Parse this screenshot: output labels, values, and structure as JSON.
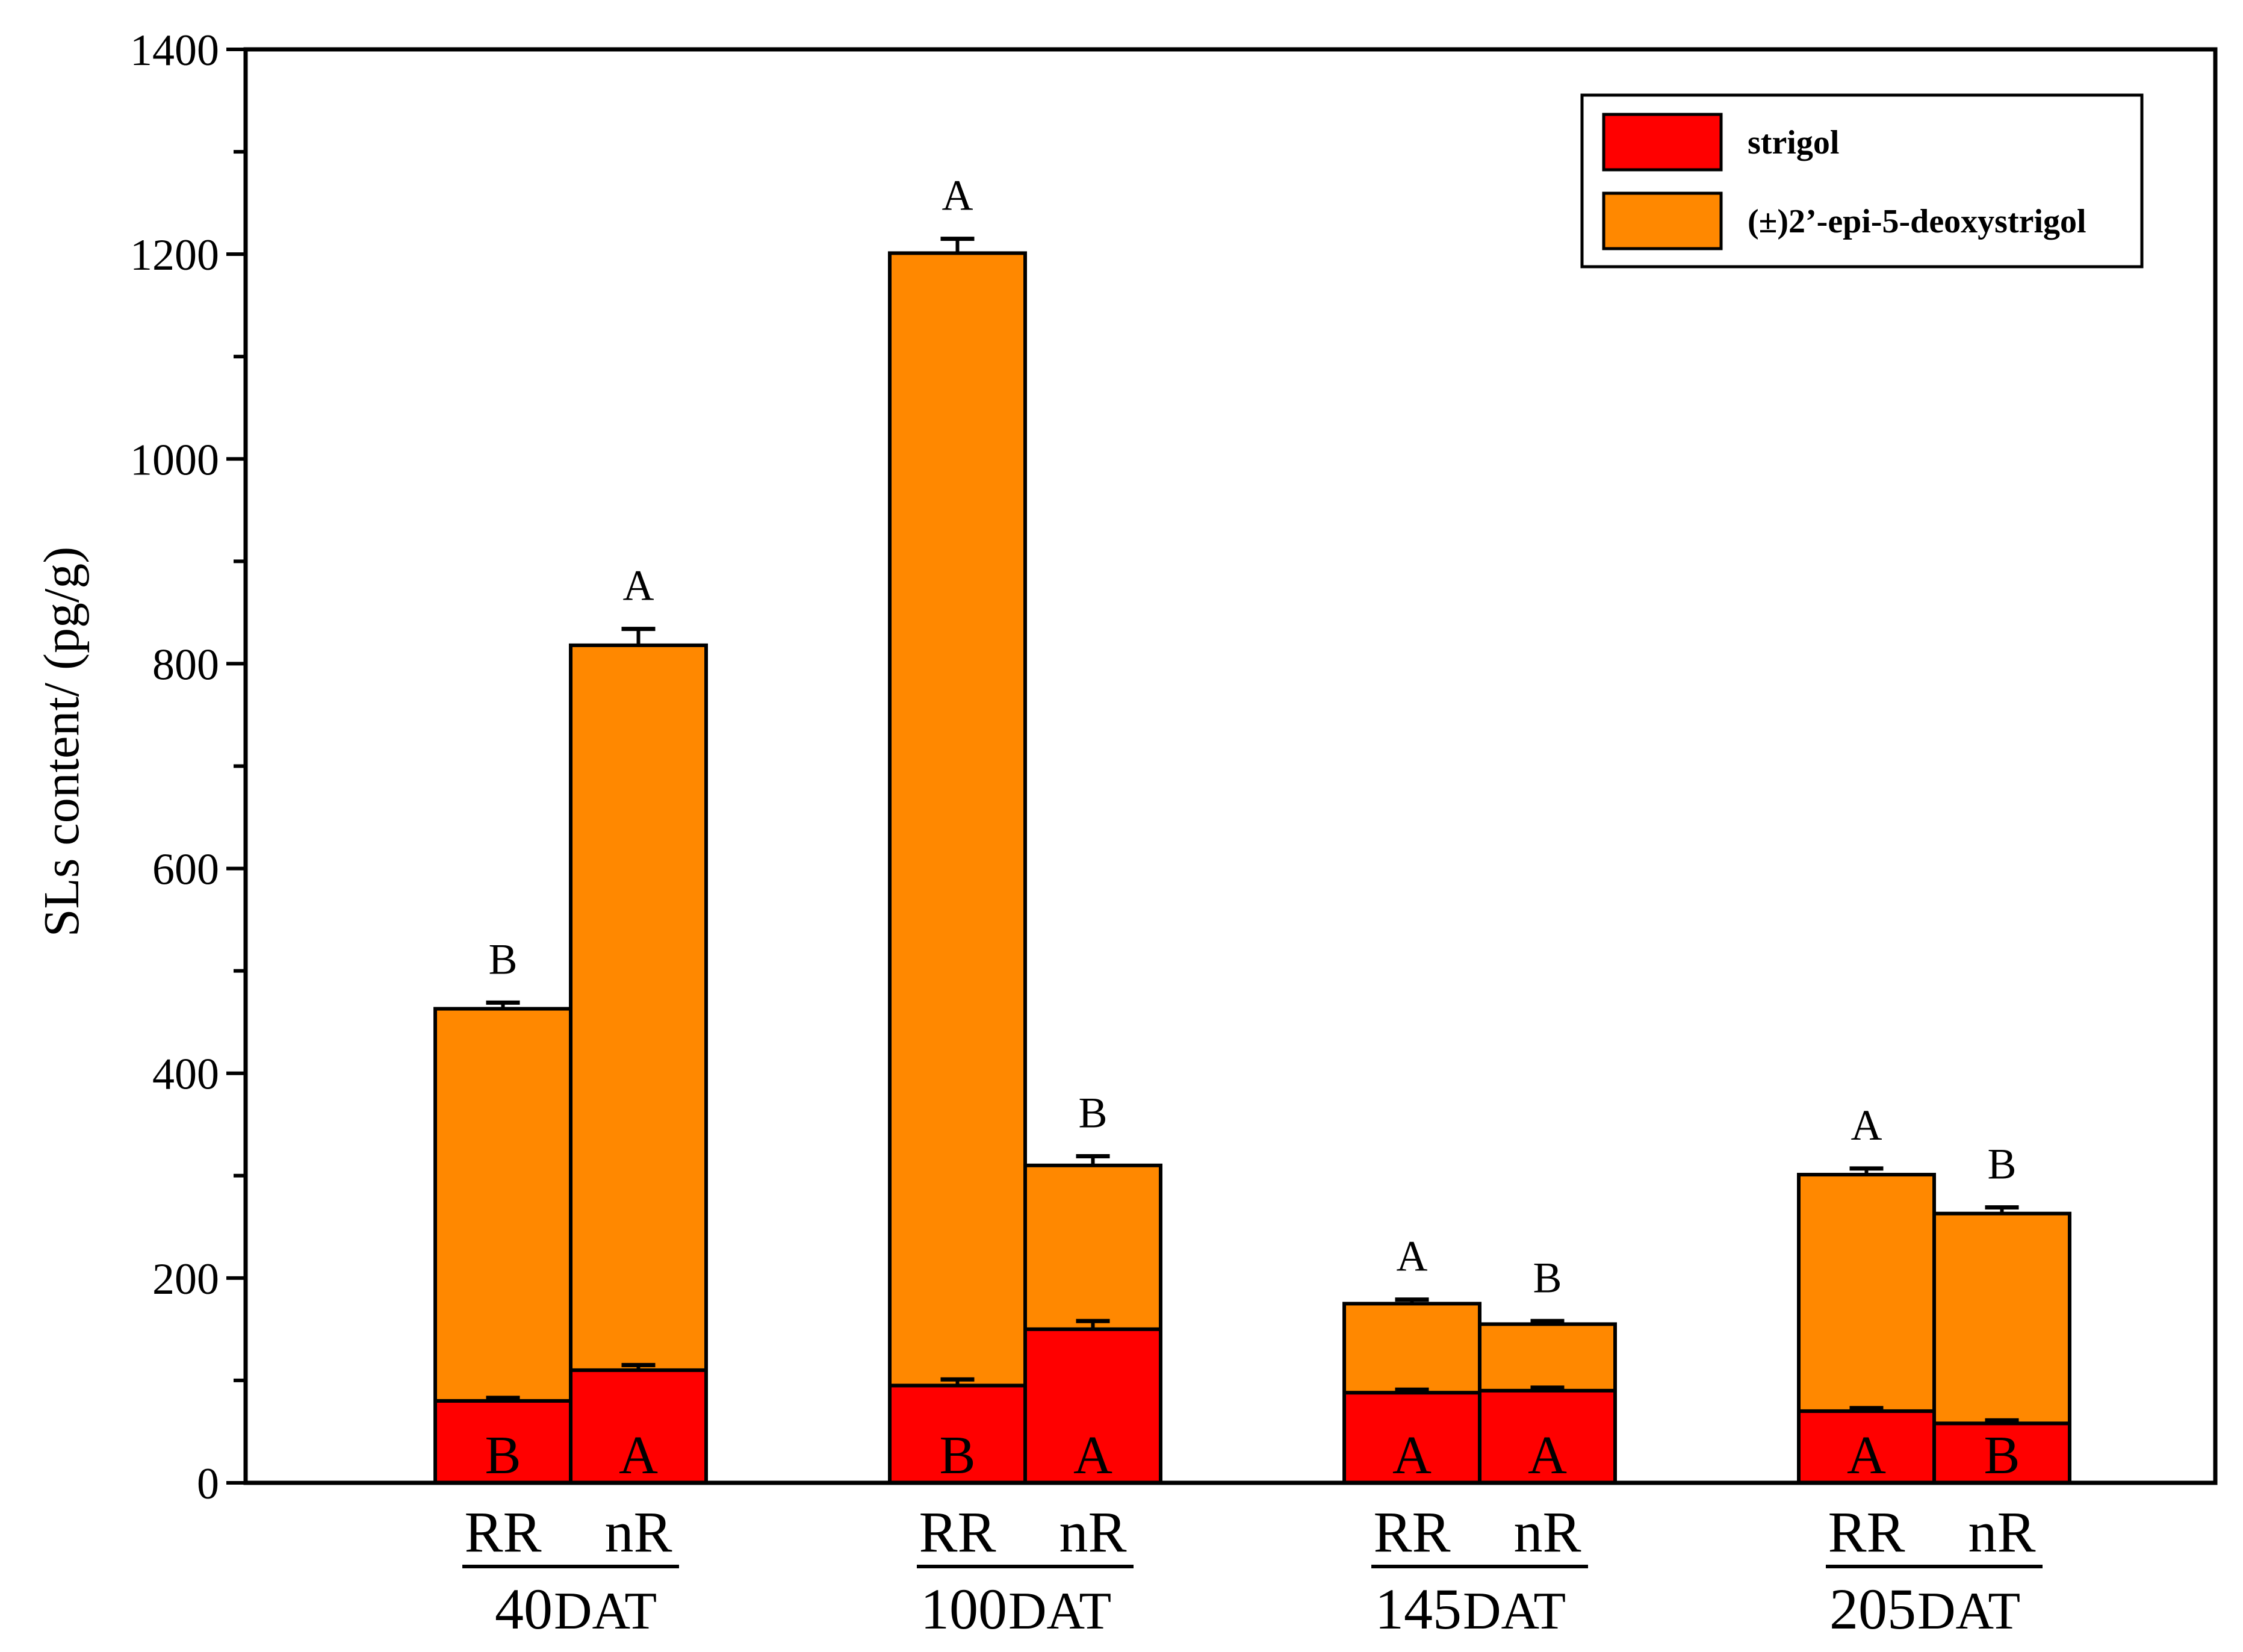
{
  "chart_data": {
    "type": "bar",
    "stacked": true,
    "ylabel": "SLs content/ (pg/g)",
    "xlabel": "",
    "ylim": [
      0,
      1400
    ],
    "yticks": [
      0,
      200,
      400,
      600,
      800,
      1000,
      1200,
      1400
    ],
    "legend_position": "top-right",
    "colors": {
      "strigol": "#ff0000",
      "deoxystrigol": "#ff8800"
    },
    "legend": [
      "strigol",
      "(±)2’-epi-5-deoxystrigol"
    ],
    "groups": [
      {
        "day": "40",
        "unit": "DAT",
        "bars": [
          {
            "label": "RR",
            "strigol": 80,
            "total": 463,
            "err_strigol": 3,
            "err_total": 6,
            "letter_strigol": "B",
            "letter_total": "B"
          },
          {
            "label": "nR",
            "strigol": 110,
            "total": 818,
            "err_strigol": 5,
            "err_total": 16,
            "letter_strigol": "A",
            "letter_total": "A"
          }
        ]
      },
      {
        "day": "100",
        "unit": "DAT",
        "bars": [
          {
            "label": "RR",
            "strigol": 95,
            "total": 1201,
            "err_strigol": 6,
            "err_total": 14,
            "letter_strigol": "B",
            "letter_total": "A"
          },
          {
            "label": "nR",
            "strigol": 150,
            "total": 310,
            "err_strigol": 8,
            "err_total": 9,
            "letter_strigol": "A",
            "letter_total": "B"
          }
        ]
      },
      {
        "day": "145",
        "unit": "DAT",
        "bars": [
          {
            "label": "RR",
            "strigol": 88,
            "total": 175,
            "err_strigol": 3,
            "err_total": 4,
            "letter_strigol": "A",
            "letter_total": "A"
          },
          {
            "label": "nR",
            "strigol": 90,
            "total": 155,
            "err_strigol": 3,
            "err_total": 3,
            "letter_strigol": "A",
            "letter_total": "B"
          }
        ]
      },
      {
        "day": "205",
        "unit": "DAT",
        "bars": [
          {
            "label": "RR",
            "strigol": 70,
            "total": 301,
            "err_strigol": 3,
            "err_total": 6,
            "letter_strigol": "A",
            "letter_total": "A"
          },
          {
            "label": "nR",
            "strigol": 58,
            "total": 263,
            "err_strigol": 3,
            "err_total": 6,
            "letter_strigol": "B",
            "letter_total": "B"
          }
        ]
      }
    ]
  }
}
